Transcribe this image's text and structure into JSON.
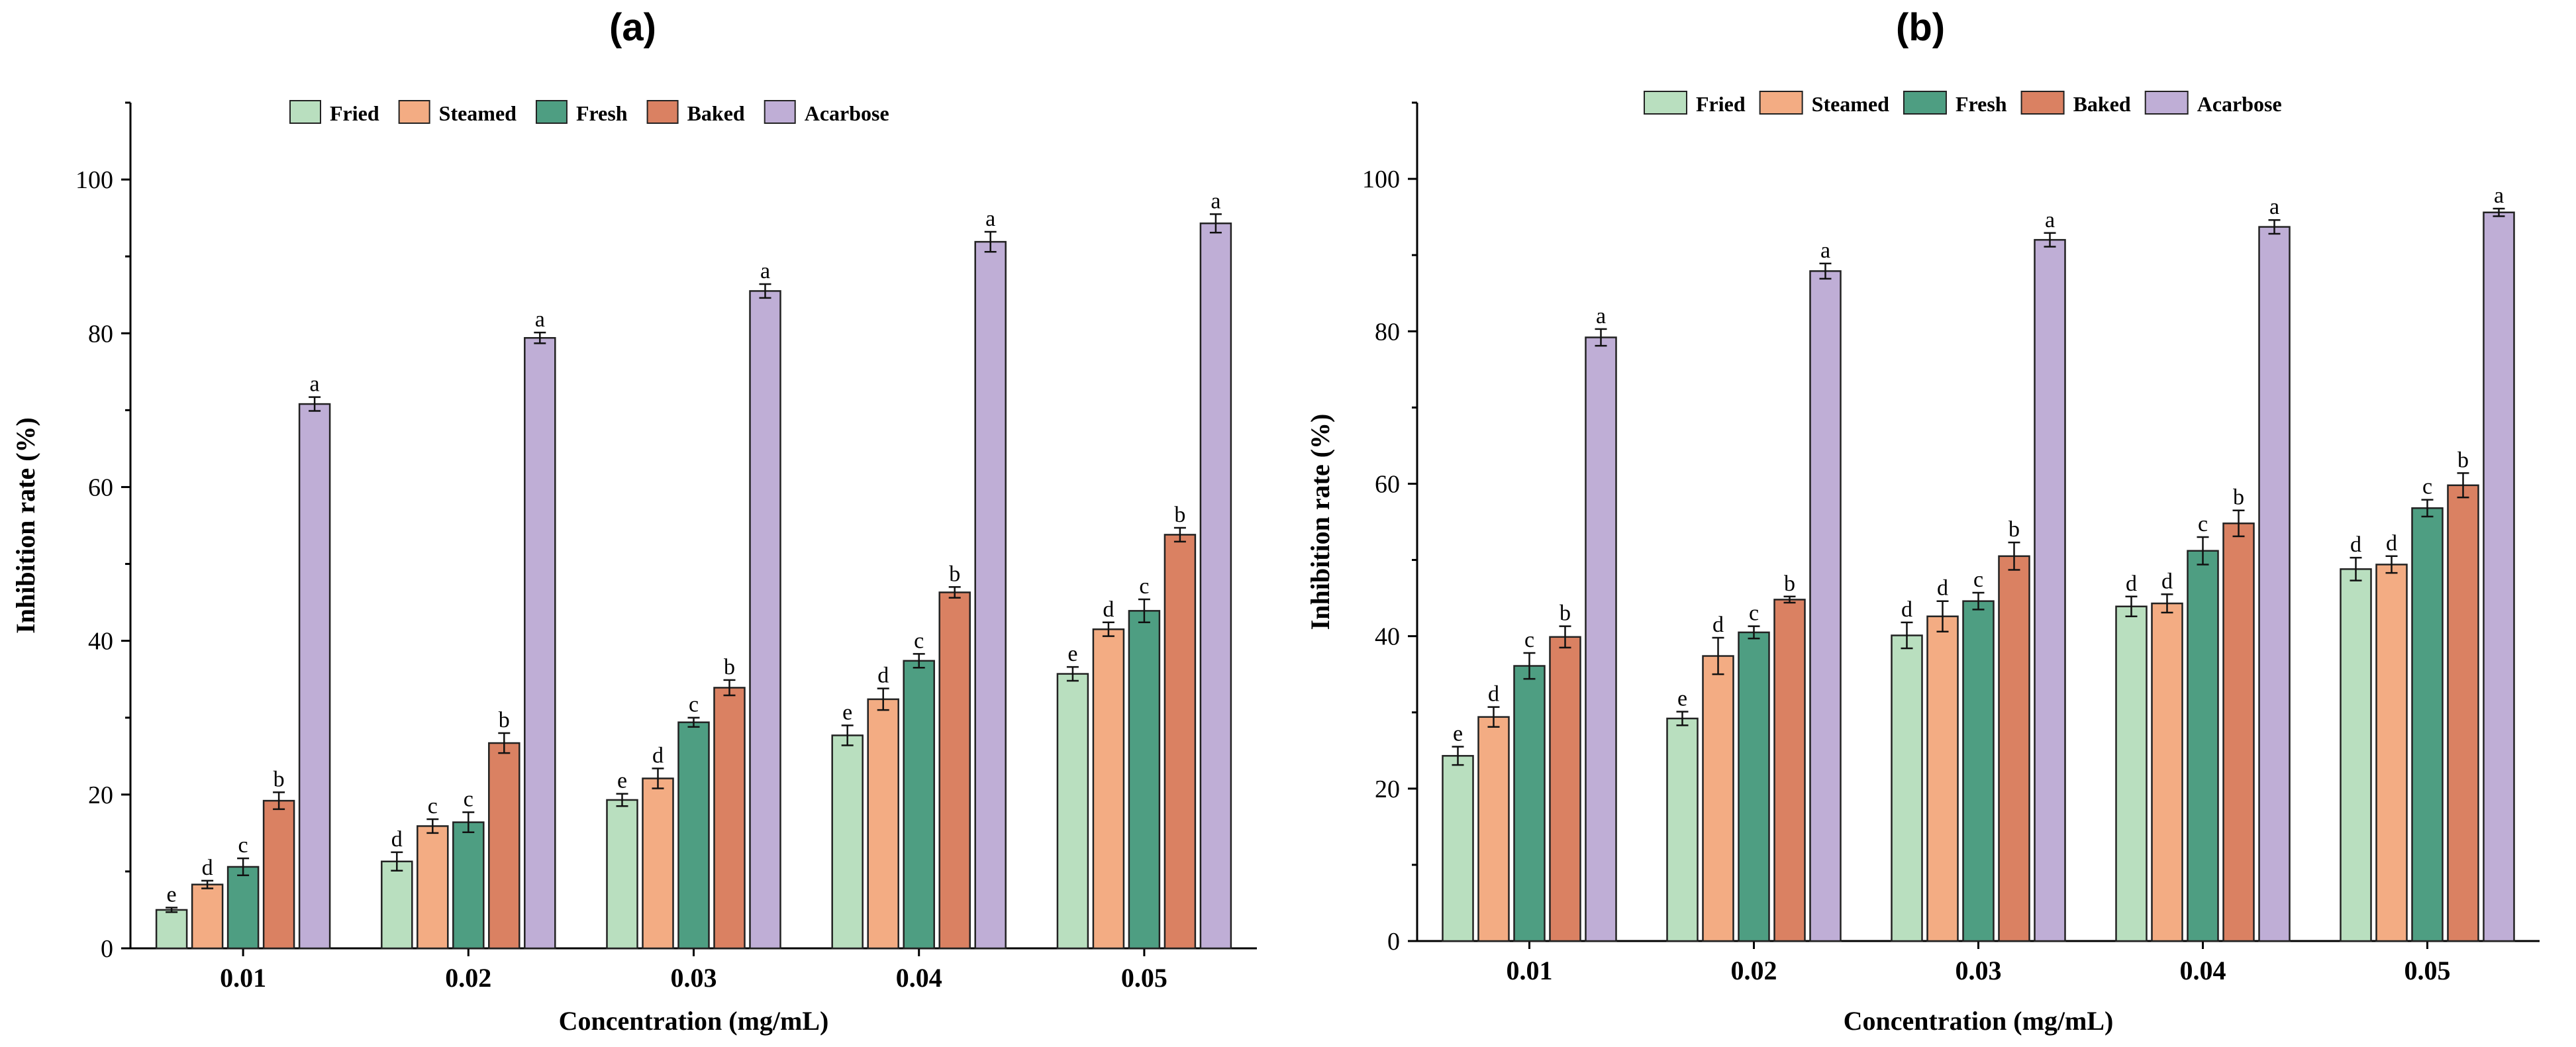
{
  "chart_data": [
    {
      "type": "bar",
      "panel_label": "(a)",
      "xlabel": "Concentration (mg/mL)",
      "ylabel": "Inhibition rate (%)",
      "ylim": [
        0,
        110
      ],
      "yticks": [
        0,
        20,
        40,
        60,
        80,
        100
      ],
      "categories": [
        "0.01",
        "0.02",
        "0.03",
        "0.04",
        "0.05"
      ],
      "legend_position": "top",
      "series": [
        {
          "name": "Fried",
          "color": "#b9dfbf",
          "values": [
            5.0,
            11.3,
            19.3,
            27.7,
            35.7
          ],
          "errors": [
            0.3,
            1.2,
            0.8,
            1.3,
            0.9
          ],
          "letters": [
            "e",
            "d",
            "e",
            "e",
            "e"
          ]
        },
        {
          "name": "Steamed",
          "color": "#f3ac83",
          "values": [
            8.3,
            15.9,
            22.1,
            32.4,
            41.5
          ],
          "errors": [
            0.5,
            0.9,
            1.3,
            1.4,
            0.9
          ],
          "letters": [
            "d",
            "c",
            "d",
            "d",
            "d"
          ]
        },
        {
          "name": "Fresh",
          "color": "#4e9e82",
          "values": [
            10.6,
            16.4,
            29.4,
            37.4,
            43.9
          ],
          "errors": [
            1.1,
            1.3,
            0.6,
            0.9,
            1.5
          ],
          "letters": [
            "c",
            "c",
            "c",
            "c",
            "c"
          ]
        },
        {
          "name": "Baked",
          "color": "#da8162",
          "values": [
            19.2,
            26.7,
            33.9,
            46.3,
            53.8
          ],
          "errors": [
            1.1,
            1.3,
            1.0,
            0.7,
            0.9
          ],
          "letters": [
            "b",
            "b",
            "b",
            "b",
            "b"
          ]
        },
        {
          "name": "Acarbose",
          "color": "#bfaed6",
          "values": [
            70.8,
            79.4,
            85.5,
            91.9,
            94.3
          ],
          "errors": [
            0.9,
            0.7,
            0.9,
            1.3,
            1.2
          ],
          "letters": [
            "a",
            "a",
            "a",
            "a",
            "a"
          ]
        }
      ]
    },
    {
      "type": "bar",
      "panel_label": "(b)",
      "xlabel": "Concentration (mg/mL)",
      "ylabel": "Inhibition rate (%)",
      "ylim": [
        0,
        110
      ],
      "yticks": [
        0,
        20,
        40,
        60,
        80,
        100
      ],
      "categories": [
        "0.01",
        "0.02",
        "0.03",
        "0.04",
        "0.05"
      ],
      "legend_position": "top",
      "series": [
        {
          "name": "Fried",
          "color": "#b9dfbf",
          "values": [
            24.3,
            29.2,
            40.1,
            43.9,
            48.8
          ],
          "errors": [
            1.2,
            0.9,
            1.7,
            1.3,
            1.5
          ],
          "letters": [
            "e",
            "e",
            "d",
            "d",
            "d"
          ]
        },
        {
          "name": "Steamed",
          "color": "#f3ac83",
          "values": [
            29.4,
            37.4,
            42.6,
            44.3,
            49.4
          ],
          "errors": [
            1.3,
            2.4,
            2.0,
            1.2,
            1.1
          ],
          "letters": [
            "d",
            "d",
            "d",
            "d",
            "d"
          ]
        },
        {
          "name": "Fresh",
          "color": "#4e9e82",
          "values": [
            36.1,
            40.5,
            44.6,
            51.2,
            56.8
          ],
          "errors": [
            1.7,
            0.8,
            1.1,
            1.8,
            1.1
          ],
          "letters": [
            "c",
            "c",
            "c",
            "c",
            "c"
          ]
        },
        {
          "name": "Baked",
          "color": "#da8162",
          "values": [
            39.9,
            44.8,
            50.5,
            54.8,
            59.8
          ],
          "errors": [
            1.4,
            0.4,
            1.8,
            1.7,
            1.6
          ],
          "letters": [
            "b",
            "b",
            "b",
            "b",
            "b"
          ]
        },
        {
          "name": "Acarbose",
          "color": "#bfaed6",
          "values": [
            79.2,
            87.9,
            92.0,
            93.7,
            95.6
          ],
          "errors": [
            1.1,
            1.0,
            0.9,
            0.9,
            0.5
          ],
          "letters": [
            "a",
            "a",
            "a",
            "a",
            "a"
          ]
        }
      ]
    }
  ]
}
